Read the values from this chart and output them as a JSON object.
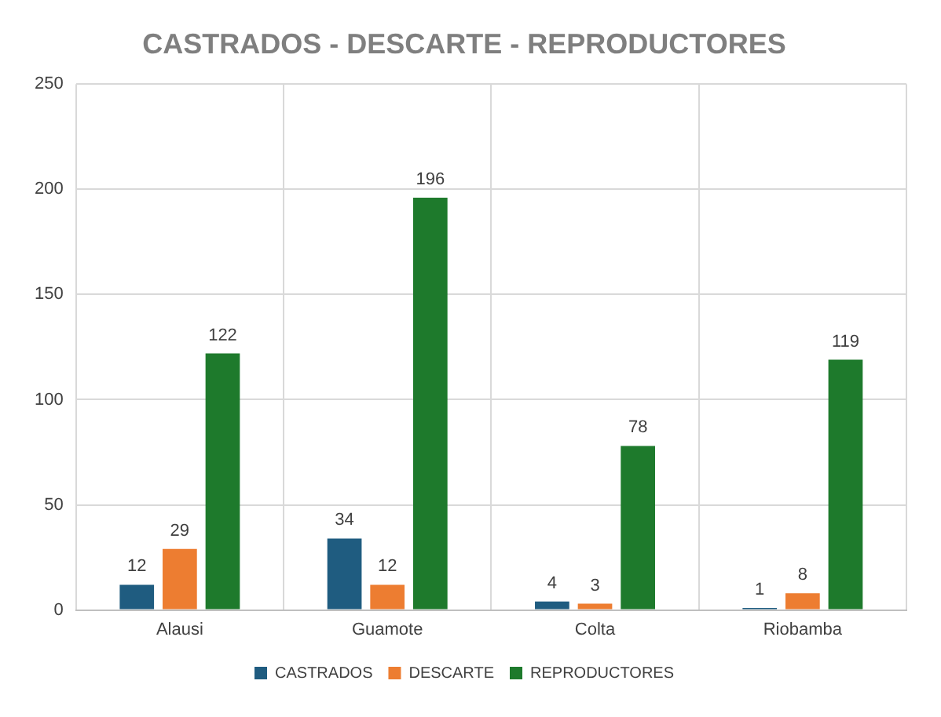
{
  "chart_data": {
    "type": "bar",
    "title": "CASTRADOS - DESCARTE - REPRODUCTORES",
    "categories": [
      "Alausi",
      "Guamote",
      "Colta",
      "Riobamba"
    ],
    "series": [
      {
        "name": "CASTRADOS",
        "color": "#1f5c80",
        "values": [
          12,
          34,
          4,
          1
        ]
      },
      {
        "name": "DESCARTE",
        "color": "#ed7d31",
        "values": [
          29,
          12,
          3,
          8
        ]
      },
      {
        "name": "REPRODUCTORES",
        "color": "#1e7a2c",
        "values": [
          122,
          196,
          78,
          119
        ]
      }
    ],
    "ylim": [
      0,
      250
    ],
    "yticks": [
      0,
      50,
      100,
      150,
      200,
      250
    ],
    "grid": true,
    "legend": "bottom",
    "data_labels": true
  }
}
